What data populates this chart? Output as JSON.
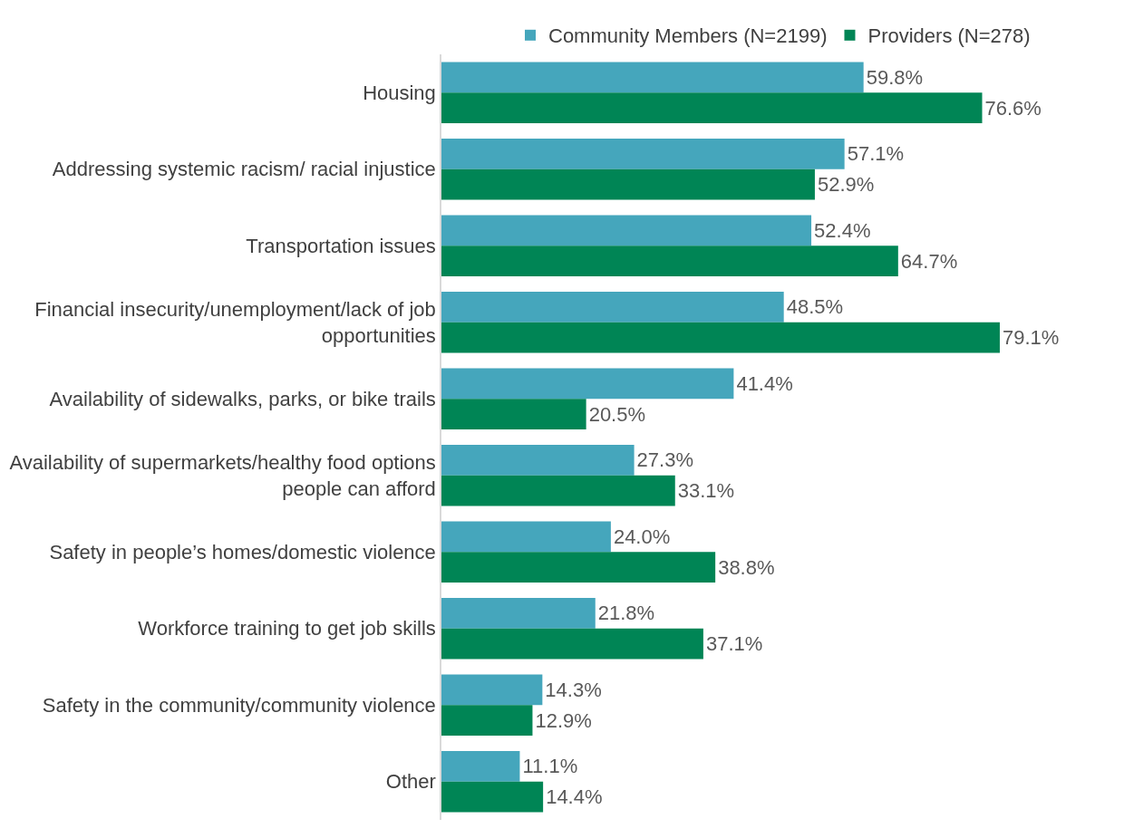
{
  "chart_data": {
    "type": "bar",
    "orientation": "horizontal",
    "tick_labels": "y",
    "legend": "top",
    "categories": [
      "Housing",
      "Addressing systemic racism/ racial injustice",
      "Transportation issues",
      "Financial insecurity/unemployment/lack of job opportunities",
      "Availability of sidewalks, parks, or bike trails",
      "Availability of supermarkets/healthy food options people can afford",
      "Safety in people’s homes/domestic violence",
      "Workforce training to get job skills",
      "Safety in the community/community violence",
      "Other"
    ],
    "series": [
      {
        "name": "Community Members (N=2199)",
        "color": "#45a6bc",
        "values": [
          59.8,
          57.1,
          52.4,
          48.5,
          41.4,
          27.3,
          24.0,
          21.8,
          14.3,
          11.1
        ],
        "value_labels": [
          "59.8%",
          "57.1%",
          "52.4%",
          "48.5%",
          "41.4%",
          "27.3%",
          "24.0%",
          "21.8%",
          "14.3%",
          "11.1%"
        ]
      },
      {
        "name": "Providers (N=278)",
        "color": "#008555",
        "values": [
          76.6,
          52.9,
          64.7,
          79.1,
          20.5,
          33.1,
          38.8,
          37.1,
          12.9,
          14.4
        ],
        "value_labels": [
          "76.6%",
          "52.9%",
          "64.7%",
          "79.1%",
          "20.5%",
          "33.1%",
          "38.8%",
          "37.1%",
          "12.9%",
          "14.4%"
        ]
      }
    ]
  }
}
